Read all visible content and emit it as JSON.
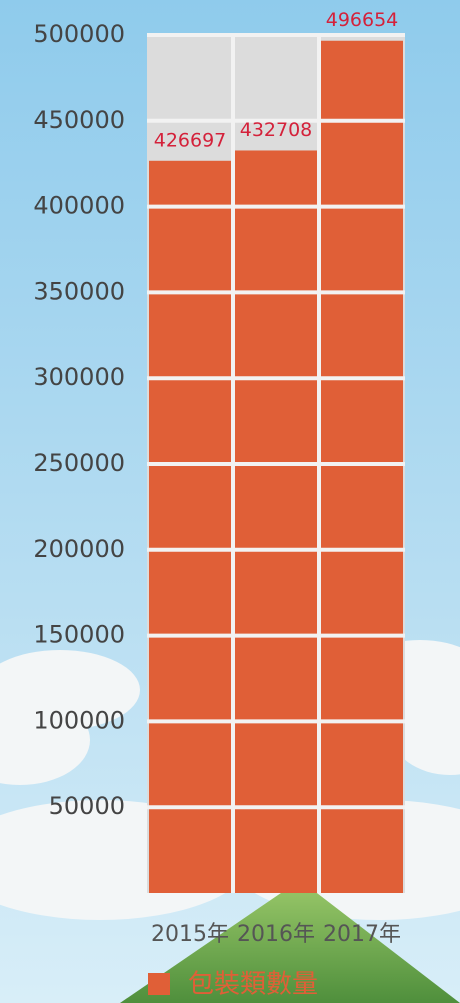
{
  "chart_data": {
    "type": "bar",
    "categories": [
      "2015年",
      "2016年",
      "2017年"
    ],
    "series": [
      {
        "name": "包裝類數量",
        "color": "#e05f37",
        "values": [
          426697,
          432708,
          496654
        ]
      }
    ],
    "value_label_color": "#d4213a",
    "ylim": [
      0,
      500000
    ],
    "yticks": [
      50000,
      100000,
      150000,
      200000,
      250000,
      300000,
      350000,
      400000,
      450000,
      500000
    ],
    "grid": true
  }
}
